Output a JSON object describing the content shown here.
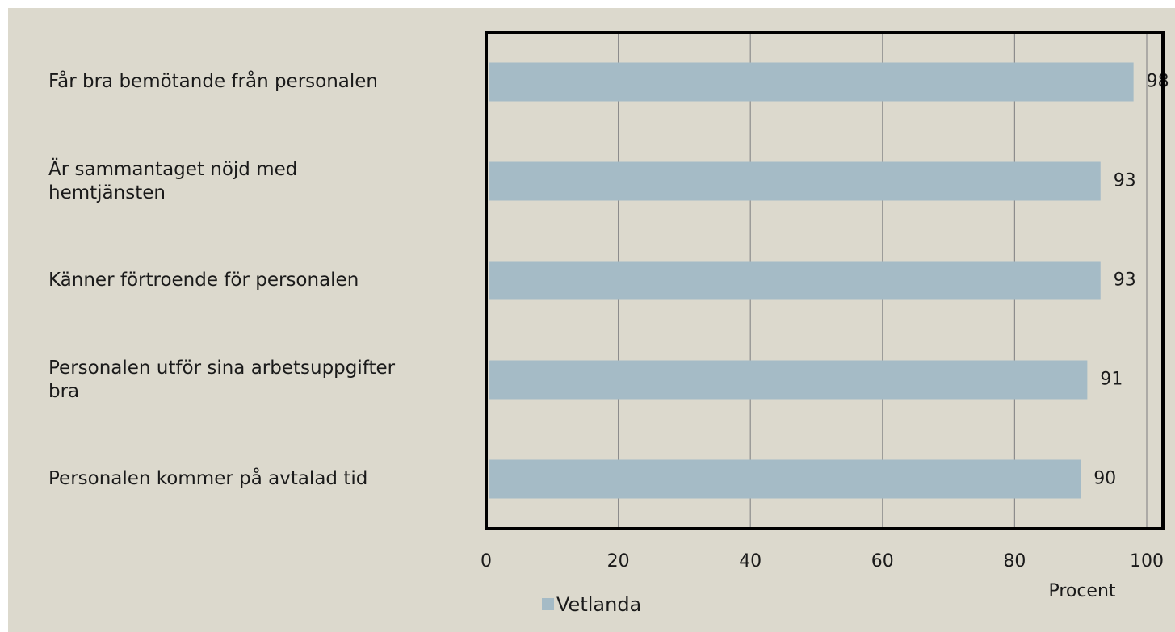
{
  "chart_data": {
    "type": "bar",
    "orientation": "horizontal",
    "categories": [
      "Får bra bemötande från personalen",
      "Är sammantaget nöjd med\nhemtjänsten",
      "Känner förtroende för personalen",
      "Personalen utför sina arbetsuppgifter\nbra",
      "Personalen kommer på avtalad tid"
    ],
    "series": [
      {
        "name": "Vetlanda",
        "color": "#a5bbc6",
        "values": [
          98,
          93,
          93,
          91,
          90
        ]
      }
    ],
    "x_label": "Procent",
    "xlim": [
      0,
      100
    ],
    "xticks": [
      0,
      20,
      40,
      60,
      80,
      100
    ],
    "grid": true,
    "legend": "bottom"
  }
}
